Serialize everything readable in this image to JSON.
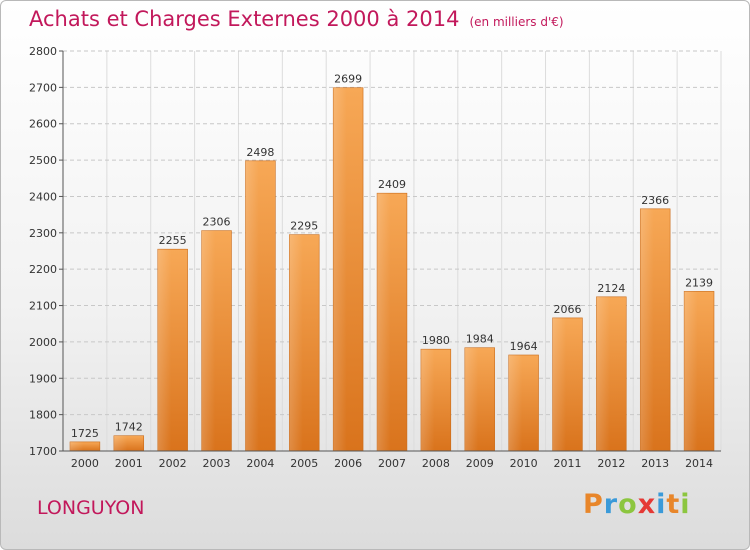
{
  "header": {
    "title": "Achats et Charges Externes 2000 à 2014",
    "unit": "(en milliers d'€)"
  },
  "footer": {
    "city": "LONGUYON",
    "logo_letters": [
      {
        "ch": "P",
        "color": "#e8862a"
      },
      {
        "ch": "r",
        "color": "#3a9ad9"
      },
      {
        "ch": "o",
        "color": "#8cc63f"
      },
      {
        "ch": "x",
        "color": "#e53935"
      },
      {
        "ch": "i",
        "color": "#3a9ad9"
      },
      {
        "ch": "t",
        "color": "#e8862a"
      },
      {
        "ch": "i",
        "color": "#8cc63f"
      }
    ]
  },
  "chart_data": {
    "type": "bar",
    "title": "Achats et Charges Externes 2000 à 2014",
    "subtitle": "(en milliers d'€)",
    "xlabel": "",
    "ylabel": "",
    "categories": [
      "2000",
      "2001",
      "2002",
      "2003",
      "2004",
      "2005",
      "2006",
      "2007",
      "2008",
      "2009",
      "2010",
      "2011",
      "2012",
      "2013",
      "2014"
    ],
    "values": [
      1725,
      1742,
      2255,
      2306,
      2498,
      2295,
      2699,
      2409,
      1980,
      1984,
      1964,
      2066,
      2124,
      2366,
      2139
    ],
    "ylim": [
      1700,
      2800
    ],
    "yticks": [
      1700,
      1800,
      1900,
      2000,
      2100,
      2200,
      2300,
      2400,
      2500,
      2600,
      2700,
      2800
    ],
    "grid": true,
    "legend": "none",
    "bar_color": "#f29a3e"
  }
}
